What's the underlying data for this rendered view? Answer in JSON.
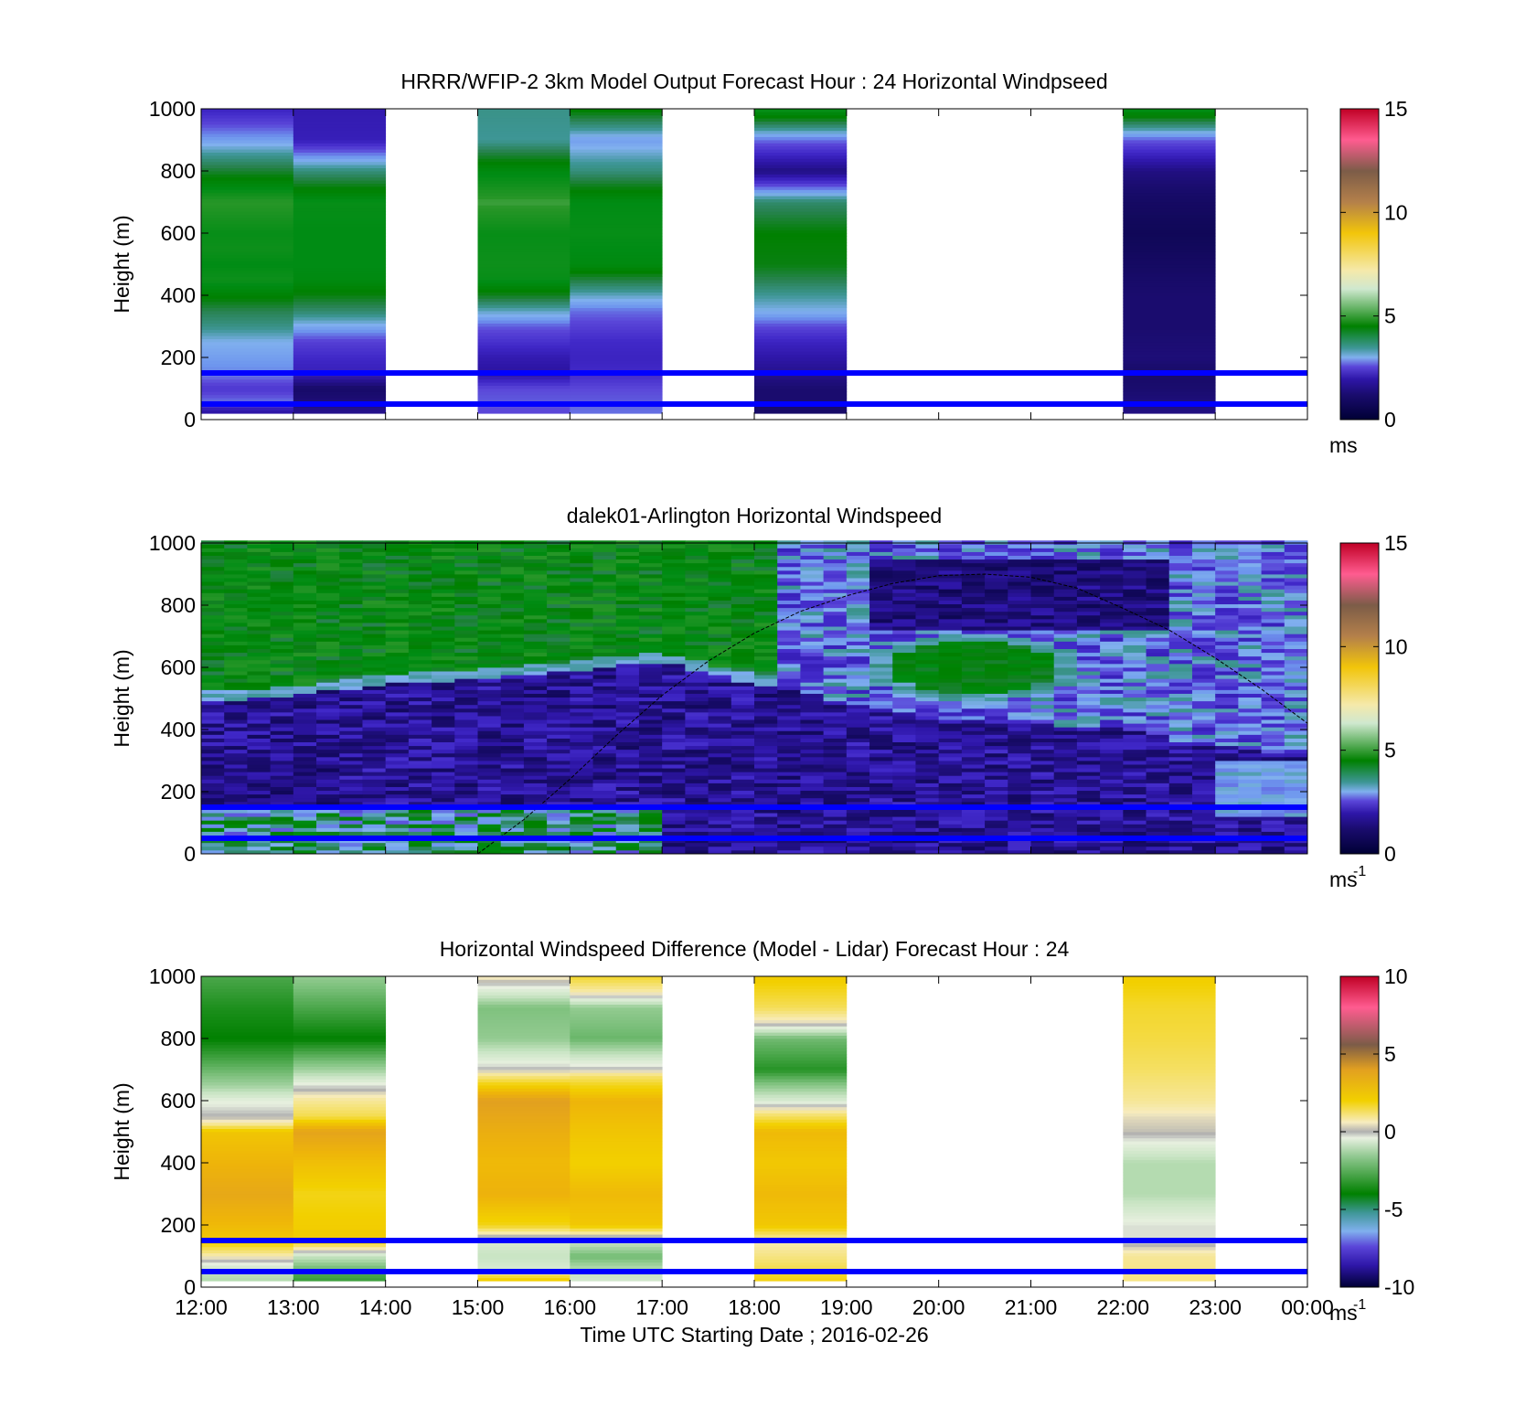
{
  "chart_data": [
    {
      "type": "heatmap",
      "id": "model",
      "title": "HRRR/WFIP-2 3km Model Output   Forecast Hour : 24 Horizontal Windpseed",
      "ylabel": "Height (m)",
      "ylim": [
        0,
        1000
      ],
      "yticks": [
        "0",
        "200",
        "400",
        "600",
        "800",
        "1000"
      ],
      "xlim_hours": [
        12,
        24
      ],
      "xticks": [
        "12:00",
        "13:00",
        "14:00",
        "15:00",
        "16:00",
        "17:00",
        "18:00",
        "19:00",
        "20:00",
        "21:00",
        "22:00",
        "23:00",
        "00:00"
      ],
      "show_xticklabels": false,
      "colorbar": {
        "min": 0,
        "max": 15,
        "ticks": [
          "0",
          "5",
          "10",
          "15"
        ],
        "unit": "ms",
        "unit_sup": "",
        "scale": "wind"
      },
      "reference_lines_m": [
        150,
        50
      ],
      "columns": [
        {
          "start_hour": 12,
          "end_hour": 13,
          "profile": [
            [
              30,
              1.6
            ],
            [
              60,
              2.6
            ],
            [
              100,
              2.2
            ],
            [
              150,
              2.7
            ],
            [
              200,
              2.9
            ],
            [
              250,
              3.1
            ],
            [
              300,
              3.6
            ],
            [
              350,
              4.0
            ],
            [
              400,
              4.6
            ],
            [
              450,
              5.2
            ],
            [
              500,
              5.0
            ],
            [
              550,
              5.2
            ],
            [
              600,
              5.1
            ],
            [
              700,
              5.6
            ],
            [
              800,
              4.2
            ],
            [
              900,
              2.9
            ],
            [
              1000,
              1.9
            ]
          ]
        },
        {
          "start_hour": 13,
          "end_hour": 14,
          "profile": [
            [
              30,
              1.3
            ],
            [
              60,
              1.1
            ],
            [
              100,
              0.9
            ],
            [
              150,
              1.8
            ],
            [
              200,
              2.0
            ],
            [
              250,
              2.3
            ],
            [
              300,
              3.0
            ],
            [
              350,
              3.8
            ],
            [
              400,
              4.4
            ],
            [
              450,
              4.9
            ],
            [
              500,
              5.0
            ],
            [
              600,
              5.0
            ],
            [
              700,
              5.1
            ],
            [
              800,
              3.7
            ],
            [
              900,
              1.8
            ],
            [
              1000,
              1.7
            ]
          ]
        },
        {
          "start_hour": 15,
          "end_hour": 16,
          "profile": [
            [
              30,
              2.4
            ],
            [
              60,
              2.5
            ],
            [
              100,
              2.4
            ],
            [
              150,
              1.5
            ],
            [
              200,
              1.7
            ],
            [
              250,
              2.1
            ],
            [
              300,
              2.5
            ],
            [
              350,
              3.3
            ],
            [
              400,
              4.3
            ],
            [
              450,
              5.1
            ],
            [
              500,
              5.2
            ],
            [
              600,
              5.1
            ],
            [
              700,
              5.7
            ],
            [
              800,
              4.9
            ],
            [
              900,
              3.5
            ],
            [
              1000,
              3.6
            ]
          ]
        },
        {
          "start_hour": 16,
          "end_hour": 17,
          "profile": [
            [
              30,
              2.6
            ],
            [
              60,
              2.5
            ],
            [
              100,
              2.4
            ],
            [
              150,
              2.0
            ],
            [
              200,
              1.9
            ],
            [
              250,
              2.0
            ],
            [
              300,
              2.3
            ],
            [
              350,
              2.6
            ],
            [
              400,
              3.3
            ],
            [
              450,
              4.1
            ],
            [
              500,
              4.9
            ],
            [
              600,
              5.1
            ],
            [
              700,
              5.0
            ],
            [
              800,
              3.7
            ],
            [
              900,
              2.9
            ],
            [
              1000,
              4.6
            ]
          ]
        },
        {
          "start_hour": 18,
          "end_hour": 19,
          "profile": [
            [
              30,
              0.9
            ],
            [
              60,
              1.0
            ],
            [
              100,
              1.0
            ],
            [
              150,
              1.3
            ],
            [
              200,
              1.6
            ],
            [
              250,
              1.9
            ],
            [
              300,
              2.4
            ],
            [
              350,
              3.1
            ],
            [
              400,
              3.5
            ],
            [
              450,
              4.0
            ],
            [
              500,
              4.4
            ],
            [
              600,
              4.5
            ],
            [
              700,
              3.8
            ],
            [
              800,
              1.2
            ],
            [
              900,
              2.6
            ],
            [
              1000,
              5.2
            ]
          ]
        },
        {
          "start_hour": 22,
          "end_hour": 23,
          "profile": [
            [
              30,
              1.2
            ],
            [
              100,
              1.0
            ],
            [
              150,
              0.9
            ],
            [
              200,
              1.1
            ],
            [
              300,
              1.0
            ],
            [
              400,
              1.0
            ],
            [
              500,
              0.8
            ],
            [
              600,
              0.6
            ],
            [
              700,
              0.8
            ],
            [
              800,
              1.2
            ],
            [
              900,
              2.5
            ],
            [
              1000,
              5.1
            ]
          ]
        }
      ]
    },
    {
      "type": "heatmap",
      "id": "lidar",
      "title": "dalek01-Arlington  Horizontal Windspeed",
      "ylabel": "Height (m)",
      "ylim": [
        0,
        1000
      ],
      "yticks": [
        "0",
        "200",
        "400",
        "600",
        "800",
        "1000"
      ],
      "xlim_hours": [
        12,
        24
      ],
      "xticks": [
        "12:00",
        "13:00",
        "14:00",
        "15:00",
        "16:00",
        "17:00",
        "18:00",
        "19:00",
        "20:00",
        "21:00",
        "22:00",
        "23:00",
        "00:00"
      ],
      "show_xticklabels": false,
      "colorbar": {
        "min": 0,
        "max": 15,
        "ticks": [
          "0",
          "5",
          "10",
          "15"
        ],
        "unit": "ms",
        "unit_sup": "-1",
        "scale": "wind"
      },
      "reference_lines_m": [
        150,
        50
      ],
      "data_end_hour": 23.85,
      "layer_boundary_m": [
        [
          12,
          490
        ],
        [
          13,
          510
        ],
        [
          14,
          545
        ],
        [
          15,
          565
        ],
        [
          16,
          590
        ],
        [
          17,
          620
        ],
        [
          17.8,
          560
        ],
        [
          18.5,
          520
        ],
        [
          19,
          480
        ],
        [
          20,
          440
        ],
        [
          21,
          420
        ],
        [
          22,
          400
        ],
        [
          22.7,
          360
        ],
        [
          23.2,
          340
        ],
        [
          23.85,
          320
        ]
      ],
      "upper_layer_speed": 4.8,
      "lower_layer_speed": 1.4,
      "green_cell": {
        "center_hour": 20.4,
        "center_m": 600,
        "half_width_hours": 1.2,
        "half_height_m": 110,
        "speed": 4.6
      },
      "dark_core": {
        "start_hour": 19.3,
        "end_hour": 22.5,
        "min_m": 720,
        "max_m": 950,
        "speed": 0.5
      },
      "elevation_curve": {
        "hours": [
          15,
          15.5,
          16,
          16.5,
          17,
          17.5,
          18,
          18.5,
          19,
          19.5,
          20,
          20.5,
          21,
          21.5,
          22,
          22.5,
          23,
          23.5,
          24
        ],
        "heights_m": [
          0,
          110,
          240,
          380,
          510,
          620,
          710,
          780,
          830,
          870,
          895,
          900,
          890,
          855,
          790,
          720,
          630,
          530,
          420
        ]
      }
    },
    {
      "type": "heatmap",
      "id": "difference",
      "title": "Horizontal Windspeed Difference (Model - Lidar) Forecast Hour : 24",
      "ylabel": "Height (m)",
      "xlabel": "Time UTC  Starting Date ; 2016-02-26",
      "ylim": [
        0,
        1000
      ],
      "yticks": [
        "0",
        "200",
        "400",
        "600",
        "800",
        "1000"
      ],
      "xlim_hours": [
        12,
        24
      ],
      "xticks": [
        "12:00",
        "13:00",
        "14:00",
        "15:00",
        "16:00",
        "17:00",
        "18:00",
        "19:00",
        "20:00",
        "21:00",
        "22:00",
        "23:00",
        "00:00"
      ],
      "show_xticklabels": true,
      "colorbar": {
        "min": -10,
        "max": 10,
        "ticks": [
          "-10",
          "-5",
          "0",
          "5",
          "10"
        ],
        "unit": "ms",
        "unit_sup": "-1",
        "scale": "diff"
      },
      "reference_lines_m": [
        150,
        50
      ],
      "columns": [
        {
          "start_hour": 12,
          "end_hour": 13,
          "profile": [
            [
              30,
              -1.5
            ],
            [
              60,
              -1.0
            ],
            [
              100,
              0.5
            ],
            [
              150,
              2.5
            ],
            [
              200,
              3.0
            ],
            [
              300,
              3.8
            ],
            [
              400,
              3.2
            ],
            [
              500,
              2.6
            ],
            [
              530,
              0.5
            ],
            [
              550,
              0.0
            ],
            [
              600,
              -0.5
            ],
            [
              650,
              -1.8
            ],
            [
              700,
              -2.6
            ],
            [
              800,
              -4.0
            ],
            [
              900,
              -3.6
            ],
            [
              1000,
              -3.0
            ]
          ]
        },
        {
          "start_hour": 13,
          "end_hour": 14,
          "profile": [
            [
              30,
              -3.2
            ],
            [
              60,
              -2.5
            ],
            [
              100,
              -1.2
            ],
            [
              150,
              2.4
            ],
            [
              200,
              2.3
            ],
            [
              300,
              2.0
            ],
            [
              400,
              2.8
            ],
            [
              500,
              4.0
            ],
            [
              550,
              1.5
            ],
            [
              600,
              0.8
            ],
            [
              650,
              -0.3
            ],
            [
              700,
              -1.8
            ],
            [
              800,
              -4.0
            ],
            [
              900,
              -3.0
            ],
            [
              1000,
              -2.0
            ]
          ]
        },
        {
          "start_hour": 15,
          "end_hour": 16,
          "profile": [
            [
              30,
              2.2
            ],
            [
              60,
              -0.8
            ],
            [
              100,
              -1.2
            ],
            [
              150,
              -0.8
            ],
            [
              200,
              2.0
            ],
            [
              300,
              3.3
            ],
            [
              400,
              3.0
            ],
            [
              500,
              3.5
            ],
            [
              600,
              4.2
            ],
            [
              680,
              1.0
            ],
            [
              700,
              0.0
            ],
            [
              800,
              -2.0
            ],
            [
              900,
              -2.3
            ],
            [
              950,
              -0.8
            ],
            [
              1000,
              0.5
            ]
          ]
        },
        {
          "start_hour": 16,
          "end_hour": 17,
          "profile": [
            [
              30,
              -1.0
            ],
            [
              60,
              -1.5
            ],
            [
              100,
              -2.5
            ],
            [
              150,
              -1.0
            ],
            [
              200,
              2.5
            ],
            [
              300,
              3.0
            ],
            [
              400,
              2.2
            ],
            [
              500,
              2.6
            ],
            [
              600,
              3.2
            ],
            [
              680,
              1.2
            ],
            [
              700,
              0.0
            ],
            [
              800,
              -2.6
            ],
            [
              900,
              -2.0
            ],
            [
              950,
              0.6
            ],
            [
              1000,
              1.8
            ]
          ]
        },
        {
          "start_hour": 18,
          "end_hour": 19,
          "profile": [
            [
              30,
              2.0
            ],
            [
              60,
              1.5
            ],
            [
              100,
              1.0
            ],
            [
              150,
              0.5
            ],
            [
              200,
              2.5
            ],
            [
              300,
              3.0
            ],
            [
              400,
              2.5
            ],
            [
              500,
              3.0
            ],
            [
              560,
              1.0
            ],
            [
              600,
              -0.8
            ],
            [
              700,
              -3.5
            ],
            [
              800,
              -2.5
            ],
            [
              850,
              0.2
            ],
            [
              900,
              1.4
            ],
            [
              1000,
              2.4
            ]
          ]
        },
        {
          "start_hour": 22,
          "end_hour": 23,
          "profile": [
            [
              30,
              1.0
            ],
            [
              100,
              0.8
            ],
            [
              150,
              -0.3
            ],
            [
              200,
              -0.3
            ],
            [
              300,
              -1.5
            ],
            [
              400,
              -1.5
            ],
            [
              500,
              0.1
            ],
            [
              550,
              0.3
            ],
            [
              600,
              0.8
            ],
            [
              700,
              1.3
            ],
            [
              800,
              1.6
            ],
            [
              900,
              1.8
            ],
            [
              1000,
              2.3
            ]
          ]
        }
      ]
    }
  ]
}
